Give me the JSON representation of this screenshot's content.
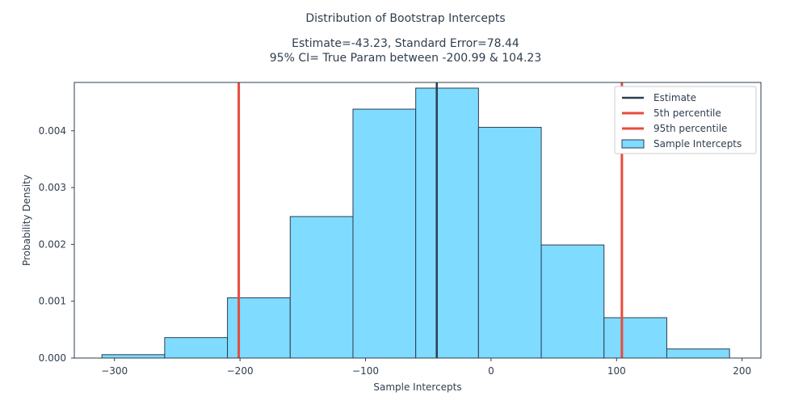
{
  "chart_data": {
    "type": "bar",
    "title": "Distribution of Bootstrap Intercepts",
    "subtitle_lines": [
      "Estimate=-43.23, Standard Error=78.44",
      "95% CI= True Param between -200.99 & 104.23"
    ],
    "xlabel": "Sample Intercepts",
    "ylabel": "Probability Density",
    "xlim": [
      -332,
      215
    ],
    "ylim": [
      0,
      0.00485
    ],
    "xticks": [
      -300,
      -200,
      -100,
      0,
      100,
      200
    ],
    "xtick_labels": [
      "−300",
      "−200",
      "−100",
      "0",
      "100",
      "200"
    ],
    "yticks": [
      0,
      0.001,
      0.002,
      0.003,
      0.004
    ],
    "ytick_labels": [
      "0.000",
      "0.001",
      "0.002",
      "0.003",
      "0.004"
    ],
    "grid": false,
    "legend_position": "top-right",
    "bins": [
      {
        "x0": -310,
        "x1": -260,
        "density": 6e-05
      },
      {
        "x0": -260,
        "x1": -210,
        "density": 0.00036
      },
      {
        "x0": -210,
        "x1": -160,
        "density": 0.00106
      },
      {
        "x0": -160,
        "x1": -110,
        "density": 0.00249
      },
      {
        "x0": -110,
        "x1": -60,
        "density": 0.00438
      },
      {
        "x0": -60,
        "x1": -10,
        "density": 0.00475
      },
      {
        "x0": -10,
        "x1": 40,
        "density": 0.00406
      },
      {
        "x0": 40,
        "x1": 90,
        "density": 0.00199
      },
      {
        "x0": 90,
        "x1": 140,
        "density": 0.00071
      },
      {
        "x0": 140,
        "x1": 190,
        "density": 0.00016
      }
    ],
    "vlines": [
      {
        "name": "Estimate",
        "x": -43.23,
        "color": "#2c3e50"
      },
      {
        "name": " 5th percentile",
        "x": -200.99,
        "color": "#e74c3c"
      },
      {
        "name": "95th percentile",
        "x": 104.23,
        "color": "#e74c3c"
      }
    ],
    "histogram_series": {
      "name": "Sample Intercepts",
      "color": "#7fdbff",
      "edgecolor": "#2c3e50"
    }
  }
}
